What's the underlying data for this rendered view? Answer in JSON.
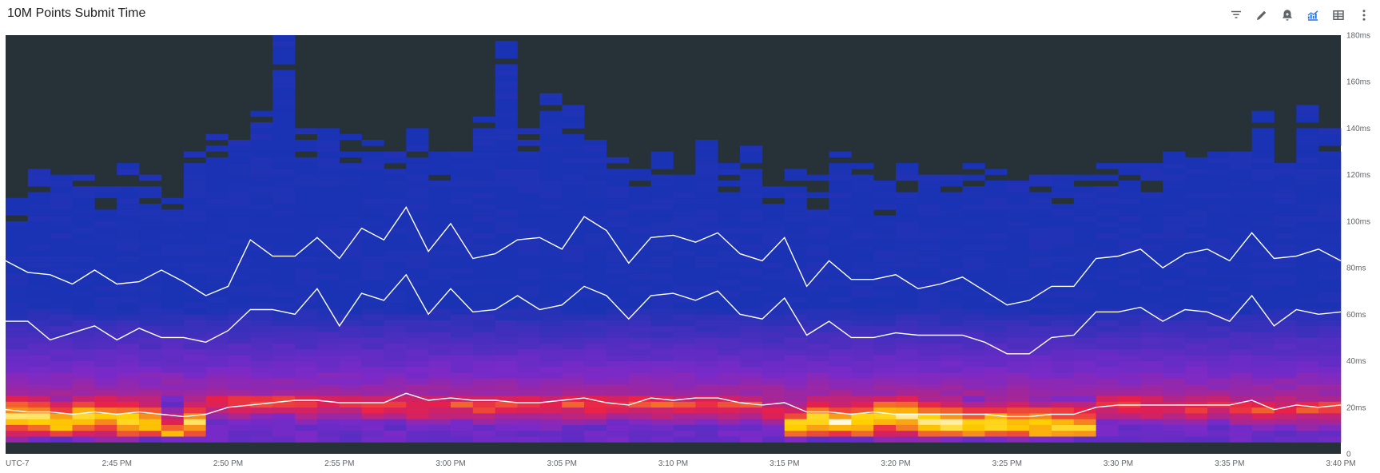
{
  "header": {
    "title": "10M Points Submit Time",
    "toolbar": [
      {
        "icon": "filter-icon",
        "color": "#5f6368"
      },
      {
        "icon": "pencil-icon",
        "color": "#5f6368"
      },
      {
        "icon": "bell-plus-icon",
        "color": "#5f6368"
      },
      {
        "icon": "chart-line-icon",
        "color": "#1a73e8"
      },
      {
        "icon": "table-icon",
        "color": "#5f6368"
      },
      {
        "icon": "more-vert-icon",
        "color": "#5f6368"
      }
    ]
  },
  "chart_data": {
    "type": "heatmap",
    "title": "10M Points Submit Time",
    "timezone_label": "UTC-7",
    "x_tick_labels": [
      "UTC-7",
      "2:45 PM",
      "2:50 PM",
      "2:55 PM",
      "3:00 PM",
      "3:05 PM",
      "3:10 PM",
      "3:15 PM",
      "3:20 PM",
      "3:25 PM",
      "3:30 PM",
      "3:35 PM",
      "3:40 PM"
    ],
    "x_range_minutes": [
      0,
      60
    ],
    "x_tick_minutes": [
      0,
      5,
      10,
      15,
      20,
      25,
      30,
      35,
      40,
      45,
      50,
      55,
      60
    ],
    "y_tick_labels": [
      "0",
      "20ms",
      "40ms",
      "60ms",
      "80ms",
      "100ms",
      "120ms",
      "140ms",
      "160ms",
      "180ms"
    ],
    "y_tick_values": [
      0,
      20,
      40,
      60,
      80,
      100,
      120,
      140,
      160,
      180
    ],
    "ylim": [
      0,
      180
    ],
    "bucket_count": 60,
    "bucket_size_ms": 2.5,
    "colors": {
      "background": "#263238",
      "low_density": "#1a33b4",
      "mid_density": "#7a2ac9",
      "high_density": "#e8204a",
      "peak_density": "#ffd000",
      "max_density": "#ffffff",
      "percentile_line": "#ffffff"
    },
    "max_latency_ms": [
      109,
      125,
      118,
      120,
      115,
      125,
      120,
      110,
      130,
      138,
      135,
      148,
      178,
      142,
      138,
      137,
      135,
      133,
      140,
      128,
      130,
      145,
      180,
      140,
      155,
      148,
      135,
      130,
      125,
      130,
      120,
      135,
      125,
      133,
      120,
      122,
      118,
      130,
      125,
      117,
      123,
      120,
      120,
      125,
      122,
      120,
      120,
      122,
      118,
      125,
      127,
      125,
      130,
      130,
      128,
      130,
      148,
      125,
      148,
      140
    ],
    "series": [
      {
        "name": "upper percentile",
        "x": [
          0,
          1,
          2,
          3,
          4,
          5,
          6,
          7,
          8,
          9,
          10,
          11,
          12,
          13,
          14,
          15,
          16,
          17,
          18,
          19,
          20,
          21,
          22,
          23,
          24,
          25,
          26,
          27,
          28,
          29,
          30,
          31,
          32,
          33,
          34,
          35,
          36,
          37,
          38,
          39,
          40,
          41,
          42,
          43,
          44,
          45,
          46,
          47,
          48,
          49,
          50,
          51,
          52,
          53,
          54,
          55,
          56,
          57,
          58,
          59,
          60
        ],
        "y": [
          83,
          78,
          77,
          73,
          79,
          73,
          74,
          79,
          74,
          68,
          72,
          92,
          85,
          85,
          93,
          84,
          97,
          92,
          106,
          87,
          99,
          84,
          86,
          92,
          93,
          88,
          102,
          96,
          82,
          93,
          94,
          91,
          95,
          86,
          83,
          93,
          72,
          83,
          75,
          75,
          77,
          71,
          73,
          76,
          70,
          64,
          66,
          72,
          72,
          84,
          85,
          88,
          80,
          86,
          88,
          83,
          95,
          84,
          85,
          88,
          83
        ]
      },
      {
        "name": "median",
        "x": [
          0,
          1,
          2,
          3,
          4,
          5,
          6,
          7,
          8,
          9,
          10,
          11,
          12,
          13,
          14,
          15,
          16,
          17,
          18,
          19,
          20,
          21,
          22,
          23,
          24,
          25,
          26,
          27,
          28,
          29,
          30,
          31,
          32,
          33,
          34,
          35,
          36,
          37,
          38,
          39,
          40,
          41,
          42,
          43,
          44,
          45,
          46,
          47,
          48,
          49,
          50,
          51,
          52,
          53,
          54,
          55,
          56,
          57,
          58,
          59,
          60
        ],
        "y": [
          57,
          57,
          49,
          52,
          55,
          49,
          54,
          50,
          50,
          48,
          53,
          62,
          62,
          60,
          71,
          55,
          69,
          66,
          77,
          60,
          71,
          61,
          62,
          68,
          62,
          64,
          72,
          68,
          58,
          68,
          69,
          66,
          70,
          60,
          58,
          67,
          51,
          57,
          50,
          50,
          52,
          51,
          51,
          51,
          48,
          43,
          43,
          50,
          51,
          61,
          61,
          63,
          57,
          62,
          61,
          57,
          68,
          55,
          62,
          60,
          61
        ]
      },
      {
        "name": "lower percentile",
        "x": [
          0,
          1,
          2,
          3,
          4,
          5,
          6,
          7,
          8,
          9,
          10,
          11,
          12,
          13,
          14,
          15,
          16,
          17,
          18,
          19,
          20,
          21,
          22,
          23,
          24,
          25,
          26,
          27,
          28,
          29,
          30,
          31,
          32,
          33,
          34,
          35,
          36,
          37,
          38,
          39,
          40,
          41,
          42,
          43,
          44,
          45,
          46,
          47,
          48,
          49,
          50,
          51,
          52,
          53,
          54,
          55,
          56,
          57,
          58,
          59,
          60
        ],
        "y": [
          19,
          18,
          18,
          17,
          18,
          17,
          18,
          17,
          16,
          17,
          20,
          21,
          22,
          23,
          23,
          22,
          22,
          22,
          26,
          23,
          24,
          23,
          23,
          22,
          22,
          23,
          24,
          22,
          21,
          24,
          23,
          24,
          24,
          22,
          21,
          22,
          18,
          18,
          17,
          18,
          17,
          17,
          17,
          17,
          17,
          16,
          16,
          17,
          17,
          20,
          21,
          21,
          21,
          21,
          21,
          21,
          23,
          19,
          21,
          20,
          21
        ]
      }
    ],
    "mode_latency_ms": [
      16,
      16,
      13,
      16,
      16,
      15,
      14,
      6,
      14,
      22,
      22,
      22,
      23,
      22,
      22,
      22,
      21,
      22,
      20,
      21,
      21,
      20,
      21,
      21,
      20,
      21,
      21,
      22,
      22,
      21,
      21,
      21,
      21,
      21,
      18,
      12,
      15,
      14,
      14,
      16,
      16,
      14,
      13,
      12,
      13,
      13,
      12,
      12,
      11,
      21,
      21,
      20,
      20,
      19,
      21,
      20,
      19,
      19,
      19,
      20
    ],
    "grid": false,
    "legend": "none"
  }
}
